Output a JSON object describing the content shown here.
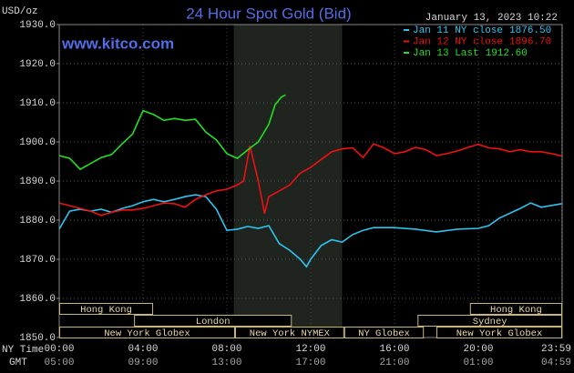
{
  "chart_data": {
    "type": "line",
    "title": "24 Hour Spot Gold (Bid)",
    "timestamp": "January 13, 2023 10:22",
    "watermark": "www.kitco.com",
    "y_label": "USD/oz",
    "x_row_labels": [
      "NY Time",
      "GMT"
    ],
    "xlim": [
      0,
      24
    ],
    "xticks": [
      {
        "value": 0,
        "label": "00:00"
      },
      {
        "value": 4,
        "label": "04:00"
      },
      {
        "value": 8,
        "label": "08:00"
      },
      {
        "value": 12,
        "label": "12:00"
      },
      {
        "value": 16,
        "label": "16:00"
      },
      {
        "value": 20,
        "label": "20:00"
      },
      {
        "value": 23.98,
        "label": "23:59"
      }
    ],
    "gmt_labels": [
      "05:00",
      "09:00",
      "13:00",
      "17:00",
      "21:00",
      "01:00",
      "04:59"
    ],
    "ylim": [
      1850,
      1930
    ],
    "yticks": [
      {
        "value": 1850,
        "label": "1850.0"
      },
      {
        "value": 1860,
        "label": "1860.0"
      },
      {
        "value": 1870,
        "label": "1870.0"
      },
      {
        "value": 1880,
        "label": "1880.0"
      },
      {
        "value": 1890,
        "label": "1890.0"
      },
      {
        "value": 1900,
        "label": "1900.0"
      },
      {
        "value": 1910,
        "label": "1910.0"
      },
      {
        "value": 1920,
        "label": "1920.0"
      },
      {
        "value": 1930,
        "label": "1930.0"
      }
    ],
    "grid": true,
    "shaded_range": [
      8.33,
      13.5
    ],
    "sessions": [
      {
        "label": "Hong Kong",
        "start": 0,
        "end": 4.48,
        "row": 0
      },
      {
        "label": "Hong Kong",
        "start": 19.6,
        "end": 24,
        "row": 0
      },
      {
        "label": "London",
        "start": 3.57,
        "end": 11.1,
        "row": 1
      },
      {
        "label": "Sydney",
        "start": 17.1,
        "end": 24,
        "row": 1
      },
      {
        "label": "New York Globex",
        "start": 0,
        "end": 8.39,
        "row": 2
      },
      {
        "label": "New York NYMEX",
        "start": 8.39,
        "end": 13.6,
        "row": 2
      },
      {
        "label": "NY Globex",
        "start": 13.6,
        "end": 17.4,
        "row": 2
      },
      {
        "label": "New York Globex",
        "start": 18,
        "end": 24,
        "row": 2
      }
    ],
    "series": [
      {
        "name": "Jan 11 NY close",
        "close": {
          "value": 1876.5,
          "label": "1876.50"
        },
        "color": "#2ec4f0",
        "x": [
          0,
          0.5,
          1,
          1.5,
          2,
          2.5,
          3,
          3.5,
          4,
          4.5,
          5,
          5.5,
          6,
          6.5,
          7,
          7.5,
          8,
          8.5,
          9,
          9.5,
          10,
          10.5,
          11,
          11.5,
          11.8,
          12,
          12.5,
          13,
          13.5,
          14,
          14.5,
          15,
          16,
          17,
          18,
          19,
          20,
          20.5,
          21,
          22,
          22.5,
          23,
          23.98
        ],
        "values": [
          1877.7,
          1882.3,
          1882.8,
          1882.3,
          1882.8,
          1882,
          1883,
          1883.7,
          1884.7,
          1885.3,
          1884.7,
          1885.3,
          1886,
          1886.5,
          1886,
          1882.8,
          1877.4,
          1877.7,
          1878.4,
          1877.9,
          1878.6,
          1874,
          1872.3,
          1870,
          1868.1,
          1870,
          1873.5,
          1875,
          1874.4,
          1876.3,
          1877.4,
          1878.1,
          1878.1,
          1877.7,
          1877,
          1877.7,
          1877.9,
          1878.6,
          1880.5,
          1883,
          1884.4,
          1883.3,
          1884.2
        ]
      },
      {
        "name": "Jan 12 NY close",
        "close": {
          "value": 1896.7,
          "label": "1896.70"
        },
        "color": "#f01010",
        "x": [
          0,
          0.5,
          1,
          1.5,
          2,
          2.5,
          3,
          3.5,
          4,
          4.5,
          5,
          5.5,
          6,
          6.5,
          7,
          7.5,
          8,
          8.5,
          8.8,
          9.1,
          9.5,
          9.8,
          10,
          10.5,
          11,
          11.5,
          12,
          12.5,
          13,
          13.5,
          14,
          14.5,
          15,
          15.5,
          16,
          16.5,
          17,
          17.5,
          18,
          18.5,
          19,
          19.5,
          20,
          20.5,
          21,
          21.5,
          22,
          22.5,
          23,
          23.5,
          23.98
        ],
        "values": [
          1884.4,
          1883.7,
          1883,
          1882.3,
          1881.2,
          1882,
          1882.6,
          1882.6,
          1883,
          1883.7,
          1884.4,
          1884.2,
          1883.3,
          1885.3,
          1886.5,
          1887.5,
          1887.9,
          1889,
          1890,
          1899,
          1890,
          1881.7,
          1886,
          1887.5,
          1889,
          1892,
          1893.5,
          1895.5,
          1897.5,
          1898.2,
          1898.5,
          1896,
          1899.5,
          1898.5,
          1897,
          1897.5,
          1898.6,
          1898,
          1896.5,
          1897,
          1897.7,
          1898.6,
          1899.4,
          1898.5,
          1898.2,
          1897.5,
          1898,
          1897.5,
          1897.5,
          1897,
          1896.4
        ]
      },
      {
        "name": "Jan 13 Last",
        "close": {
          "value": 1912.6,
          "label": "1912.60"
        },
        "color": "#22e022",
        "x": [
          0,
          0.5,
          1,
          1.5,
          2,
          2.5,
          3,
          3.5,
          4,
          4.5,
          5,
          5.5,
          6,
          6.5,
          7,
          7.5,
          8,
          8.5,
          9,
          9.5,
          10,
          10.3,
          10.6,
          10.8
        ],
        "values": [
          1896.5,
          1895.8,
          1893,
          1894.5,
          1896,
          1896.8,
          1899.5,
          1902,
          1908,
          1907,
          1905.5,
          1906,
          1905.5,
          1905.8,
          1902.5,
          1900.5,
          1897,
          1895.8,
          1898,
          1900,
          1904.5,
          1909.5,
          1911.5,
          1912
        ]
      }
    ]
  }
}
